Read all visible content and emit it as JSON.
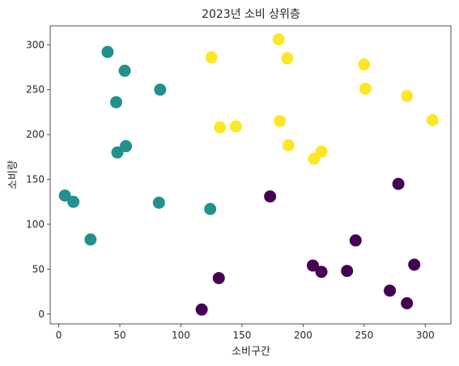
{
  "chart_data": {
    "type": "scatter",
    "title": "2023년 소비 상위층",
    "xlabel": "소비구간",
    "ylabel": "소비량",
    "xlim": [
      -7,
      321
    ],
    "ylim": [
      -11,
      321
    ],
    "xticks": [
      0,
      50,
      100,
      150,
      200,
      250,
      300
    ],
    "yticks": [
      0,
      50,
      100,
      150,
      200,
      250,
      300
    ],
    "grid": false,
    "clusters": [
      {
        "color": "#440154",
        "points": [
          [
            117,
            5
          ],
          [
            131,
            40
          ],
          [
            173,
            131
          ],
          [
            208,
            54
          ],
          [
            215,
            47
          ],
          [
            236,
            48
          ],
          [
            243,
            82
          ],
          [
            271,
            26
          ],
          [
            278,
            145
          ],
          [
            285,
            12
          ],
          [
            291,
            55
          ]
        ]
      },
      {
        "color": "#21918c",
        "points": [
          [
            5,
            132
          ],
          [
            12,
            125
          ],
          [
            26,
            83
          ],
          [
            40,
            292
          ],
          [
            47,
            236
          ],
          [
            48,
            180
          ],
          [
            54,
            271
          ],
          [
            55,
            187
          ],
          [
            82,
            124
          ],
          [
            83,
            250
          ],
          [
            124,
            117
          ]
        ]
      },
      {
        "color": "#fde725",
        "points": [
          [
            125,
            286
          ],
          [
            132,
            208
          ],
          [
            145,
            209
          ],
          [
            180,
            306
          ],
          [
            181,
            215
          ],
          [
            187,
            285
          ],
          [
            188,
            188
          ],
          [
            209,
            173
          ],
          [
            215,
            181
          ],
          [
            250,
            278
          ],
          [
            251,
            251
          ],
          [
            285,
            243
          ],
          [
            306,
            216
          ]
        ]
      }
    ]
  }
}
